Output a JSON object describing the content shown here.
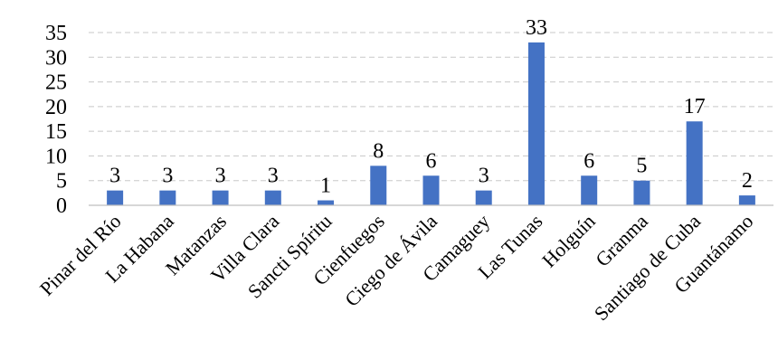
{
  "chart_data": {
    "type": "bar",
    "title": "",
    "xlabel": "",
    "ylabel": "",
    "ylim": [
      0,
      35
    ],
    "yticks": [
      0,
      5,
      10,
      15,
      20,
      25,
      30,
      35
    ],
    "grid": true,
    "legend": "none",
    "bar_color": "#4472c4",
    "categories": [
      "Pinar del Río",
      "La Habana",
      "Matanzas",
      "Villa Clara",
      "Sancti Spíritu",
      "Cienfuegos",
      "Ciego de Ávila",
      "Camaguey",
      "Las Tunas",
      "Holguín",
      "Granma",
      "Santiago de Cuba",
      "Guantánamo"
    ],
    "values": [
      3,
      3,
      3,
      3,
      1,
      8,
      6,
      3,
      33,
      6,
      5,
      17,
      2
    ]
  }
}
